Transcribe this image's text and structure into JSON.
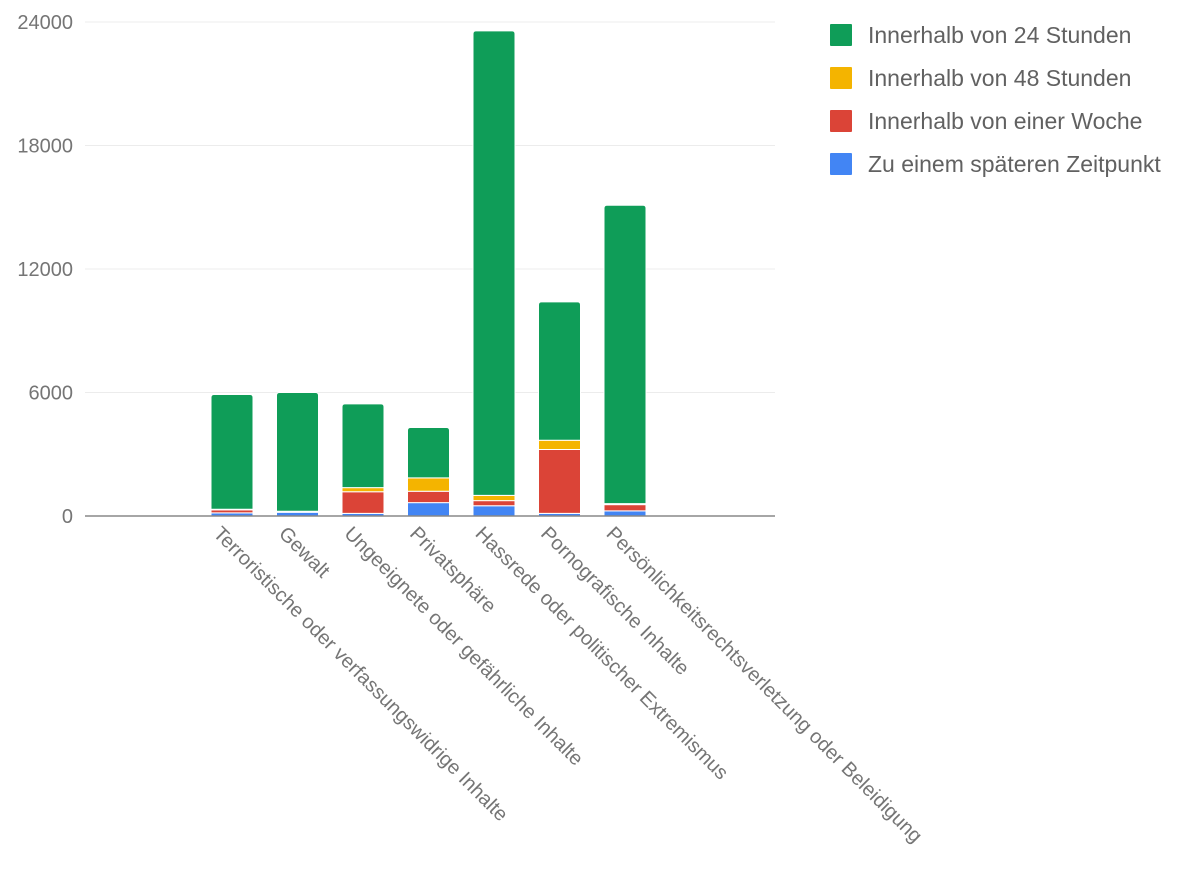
{
  "chart_data": {
    "type": "bar",
    "stacked": true,
    "categories": [
      "Terroristische oder verfassungswidrige Inhalte",
      "Gewalt",
      "Ungeeignete oder gefährliche Inhalte",
      "Privatsphäre",
      "Hassrede oder politischer Extremismus",
      "Pornografische Inhalte",
      "Persönlichkeitsrechtsverletzung oder Beleidigung"
    ],
    "series": [
      {
        "name": "Zu einem späteren Zeitpunkt",
        "color": "#4285F4",
        "values": [
          150,
          180,
          130,
          650,
          500,
          130,
          250
        ]
      },
      {
        "name": "Innerhalb von einer Woche",
        "color": "#DB4437",
        "values": [
          150,
          20,
          1050,
          550,
          250,
          3100,
          300
        ]
      },
      {
        "name": "Innerhalb von 48 Stunden",
        "color": "#F4B400",
        "values": [
          30,
          30,
          200,
          650,
          250,
          450,
          50
        ]
      },
      {
        "name": "Innerhalb von 24 Stunden",
        "color": "#0F9D58",
        "values": [
          5570,
          5770,
          4070,
          2450,
          22570,
          6720,
          14500
        ]
      }
    ],
    "legend_order": [
      "Innerhalb von 24 Stunden",
      "Innerhalb von 48 Stunden",
      "Innerhalb von einer Woche",
      "Zu einem späteren Zeitpunkt"
    ],
    "y_ticks": [
      0,
      6000,
      12000,
      18000,
      24000
    ],
    "ylim": [
      0,
      24000
    ],
    "grid": true,
    "legend_position": "right",
    "title": "",
    "xlabel": "",
    "ylabel": ""
  }
}
